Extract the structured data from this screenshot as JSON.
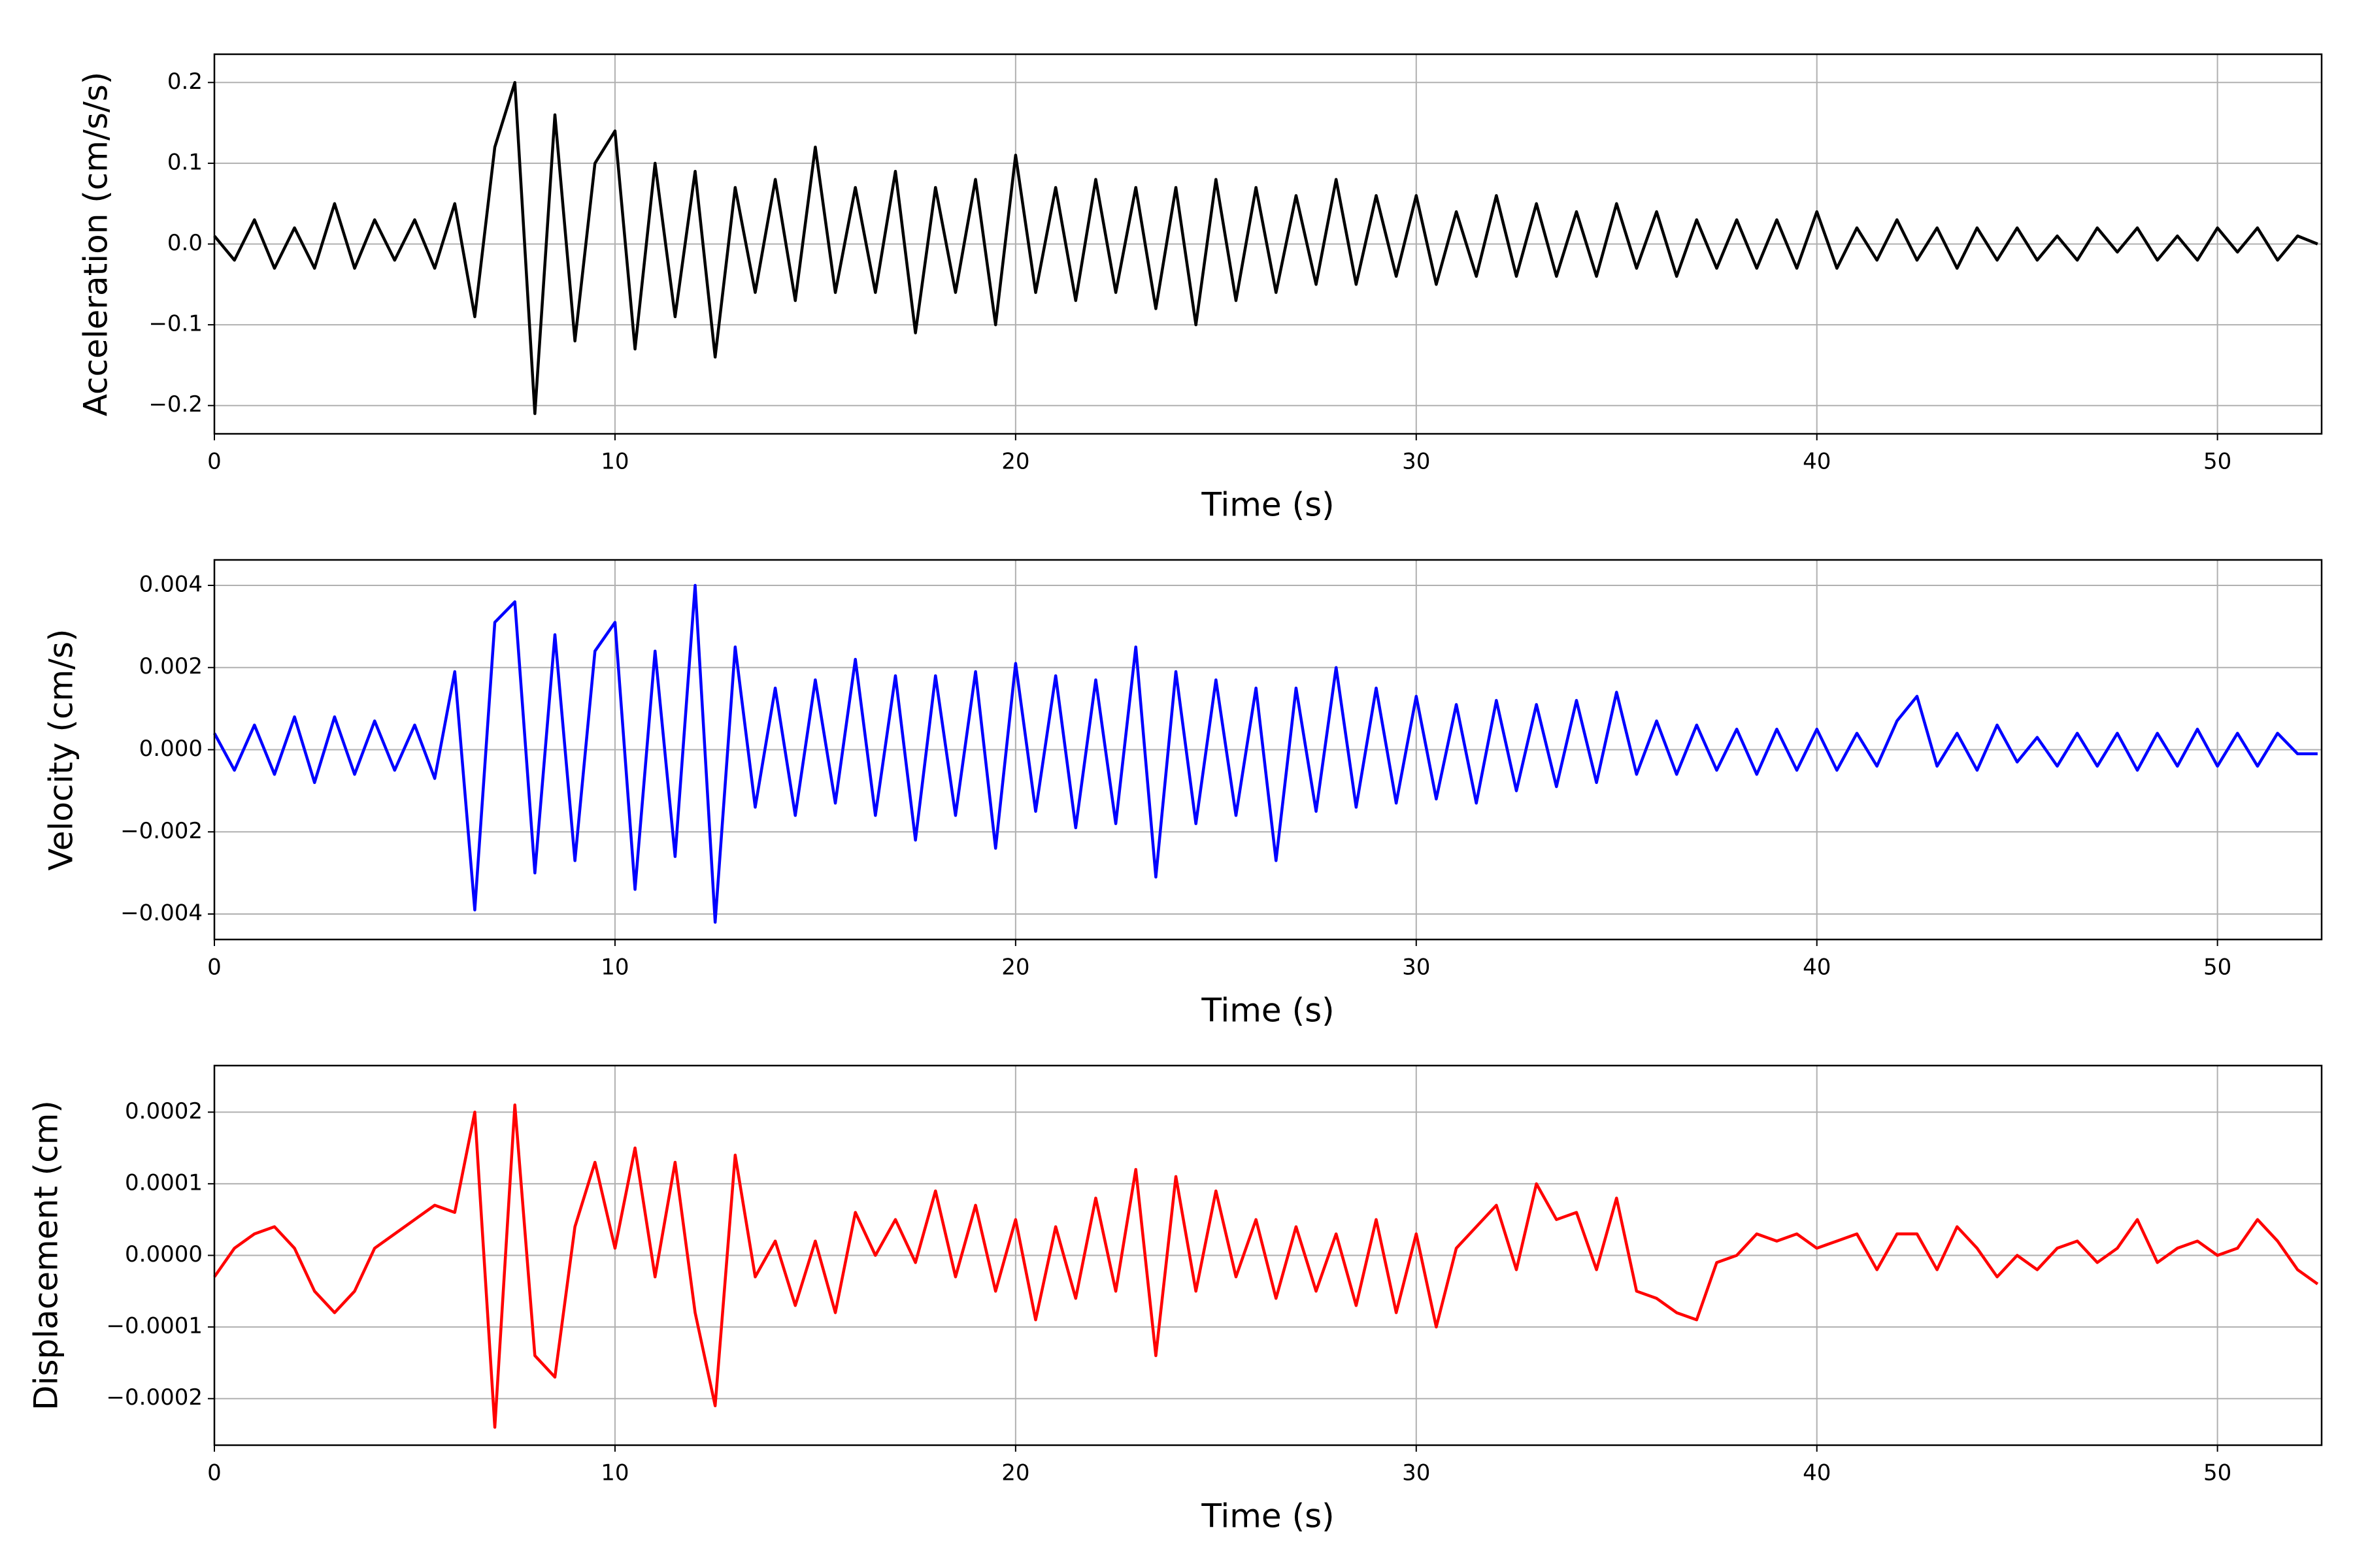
{
  "chart_data": [
    {
      "type": "line",
      "xlabel": "Time (s)",
      "ylabel": "Acceleration (cm/s/s)",
      "color": "#000000",
      "grid": true,
      "xlim": [
        0,
        52.6
      ],
      "xticks": [
        0,
        10,
        20,
        30,
        40,
        50
      ],
      "ylim": [
        -0.235,
        0.235
      ],
      "yticks": [
        {
          "value": -0.2,
          "label": "−0.2"
        },
        {
          "value": -0.1,
          "label": "−0.1"
        },
        {
          "value": 0,
          "label": "0.0"
        },
        0.1,
        0.2
      ],
      "x": [
        0,
        0.5,
        1,
        1.5,
        2,
        2.5,
        3,
        3.5,
        4,
        4.5,
        5,
        5.5,
        6,
        6.5,
        7,
        7.5,
        8,
        8.5,
        9,
        9.5,
        10,
        10.5,
        11,
        11.5,
        12,
        12.5,
        13,
        13.5,
        14,
        14.5,
        15,
        15.5,
        16,
        16.5,
        17,
        17.5,
        18,
        18.5,
        19,
        19.5,
        20,
        20.5,
        21,
        21.5,
        22,
        22.5,
        23,
        23.5,
        24,
        24.5,
        25,
        25.5,
        26,
        26.5,
        27,
        27.5,
        28,
        28.5,
        29,
        29.5,
        30,
        30.5,
        31,
        31.5,
        32,
        32.5,
        33,
        33.5,
        34,
        34.5,
        35,
        35.5,
        36,
        36.5,
        37,
        37.5,
        38,
        38.5,
        39,
        39.5,
        40,
        40.5,
        41,
        41.5,
        42,
        42.5,
        43,
        43.5,
        44,
        44.5,
        45,
        45.5,
        46,
        46.5,
        47,
        47.5,
        48,
        48.5,
        49,
        49.5,
        50,
        50.5,
        51,
        51.5,
        52,
        52.5
      ],
      "values": [
        0.01,
        -0.02,
        0.03,
        -0.03,
        0.02,
        -0.03,
        0.05,
        -0.03,
        0.03,
        -0.02,
        0.03,
        -0.03,
        0.05,
        -0.09,
        0.12,
        0.2,
        -0.21,
        0.16,
        -0.12,
        0.1,
        0.14,
        -0.13,
        0.1,
        -0.09,
        0.09,
        -0.14,
        0.07,
        -0.06,
        0.08,
        -0.07,
        0.12,
        -0.06,
        0.07,
        -0.06,
        0.09,
        -0.11,
        0.07,
        -0.06,
        0.08,
        -0.1,
        0.11,
        -0.06,
        0.07,
        -0.07,
        0.08,
        -0.06,
        0.07,
        -0.08,
        0.07,
        -0.1,
        0.08,
        -0.07,
        0.07,
        -0.06,
        0.06,
        -0.05,
        0.08,
        -0.05,
        0.06,
        -0.04,
        0.06,
        -0.05,
        0.04,
        -0.04,
        0.06,
        -0.04,
        0.05,
        -0.04,
        0.04,
        -0.04,
        0.05,
        -0.03,
        0.04,
        -0.04,
        0.03,
        -0.03,
        0.03,
        -0.03,
        0.03,
        -0.03,
        0.04,
        -0.03,
        0.02,
        -0.02,
        0.03,
        -0.02,
        0.02,
        -0.03,
        0.02,
        -0.02,
        0.02,
        -0.02,
        0.01,
        -0.02,
        0.02,
        -0.01,
        0.02,
        -0.02,
        0.01,
        -0.02,
        0.02,
        -0.01,
        0.02,
        -0.02,
        0.01,
        0
      ]
    },
    {
      "type": "line",
      "xlabel": "Time (s)",
      "ylabel": "Velocity (cm/s)",
      "color": "#0000ff",
      "grid": true,
      "xlim": [
        0,
        52.6
      ],
      "xticks": [
        0,
        10,
        20,
        30,
        40,
        50
      ],
      "ylim": [
        -0.00462,
        0.00462
      ],
      "yticks": [
        {
          "value": -0.004,
          "label": "−0.004"
        },
        {
          "value": -0.002,
          "label": "−0.002"
        },
        {
          "value": 0,
          "label": "0.000"
        },
        0.002,
        0.004
      ],
      "x": [
        0,
        0.5,
        1,
        1.5,
        2,
        2.5,
        3,
        3.5,
        4,
        4.5,
        5,
        5.5,
        6,
        6.5,
        7,
        7.5,
        8,
        8.5,
        9,
        9.5,
        10,
        10.5,
        11,
        11.5,
        12,
        12.5,
        13,
        13.5,
        14,
        14.5,
        15,
        15.5,
        16,
        16.5,
        17,
        17.5,
        18,
        18.5,
        19,
        19.5,
        20,
        20.5,
        21,
        21.5,
        22,
        22.5,
        23,
        23.5,
        24,
        24.5,
        25,
        25.5,
        26,
        26.5,
        27,
        27.5,
        28,
        28.5,
        29,
        29.5,
        30,
        30.5,
        31,
        31.5,
        32,
        32.5,
        33,
        33.5,
        34,
        34.5,
        35,
        35.5,
        36,
        36.5,
        37,
        37.5,
        38,
        38.5,
        39,
        39.5,
        40,
        40.5,
        41,
        41.5,
        42,
        42.5,
        43,
        43.5,
        44,
        44.5,
        45,
        45.5,
        46,
        46.5,
        47,
        47.5,
        48,
        48.5,
        49,
        49.5,
        50,
        50.5,
        51,
        51.5,
        52,
        52.5
      ],
      "values": [
        0.0004,
        -0.0005,
        0.0006,
        -0.0006,
        0.0008,
        -0.0008,
        0.0008,
        -0.0006,
        0.0007,
        -0.0005,
        0.0006,
        -0.0007,
        0.0019,
        -0.0039,
        0.0031,
        0.0036,
        -0.003,
        0.0028,
        -0.0027,
        0.0024,
        0.0031,
        -0.0034,
        0.0024,
        -0.0026,
        0.004,
        -0.0042,
        0.0025,
        -0.0014,
        0.0015,
        -0.0016,
        0.0017,
        -0.0013,
        0.0022,
        -0.0016,
        0.0018,
        -0.0022,
        0.0018,
        -0.0016,
        0.0019,
        -0.0024,
        0.0021,
        -0.0015,
        0.0018,
        -0.0019,
        0.0017,
        -0.0018,
        0.0025,
        -0.0031,
        0.0019,
        -0.0018,
        0.0017,
        -0.0016,
        0.0015,
        -0.0027,
        0.0015,
        -0.0015,
        0.002,
        -0.0014,
        0.0015,
        -0.0013,
        0.0013,
        -0.0012,
        0.0011,
        -0.0013,
        0.0012,
        -0.001,
        0.0011,
        -0.0009,
        0.0012,
        -0.0008,
        0.0014,
        -0.0006,
        0.0007,
        -0.0006,
        0.0006,
        -0.0005,
        0.0005,
        -0.0006,
        0.0005,
        -0.0005,
        0.0005,
        -0.0005,
        0.0004,
        -0.0004,
        0.0007,
        0.0013,
        -0.0004,
        0.0004,
        -0.0005,
        0.0006,
        -0.0003,
        0.0003,
        -0.0004,
        0.0004,
        -0.0004,
        0.0004,
        -0.0005,
        0.0004,
        -0.0004,
        0.0005,
        -0.0004,
        0.0004,
        -0.0004,
        0.0004,
        -0.0001,
        -0.0001
      ]
    },
    {
      "type": "line",
      "xlabel": "Time (s)",
      "ylabel": "Displacement (cm)",
      "color": "#ff0000",
      "grid": true,
      "xlim": [
        0,
        52.6
      ],
      "xticks": [
        0,
        10,
        20,
        30,
        40,
        50
      ],
      "ylim": [
        -0.000265,
        0.000265
      ],
      "yticks": [
        {
          "value": -0.0002,
          "label": "−0.0002"
        },
        {
          "value": -0.0001,
          "label": "−0.0001"
        },
        {
          "value": 0,
          "label": "0.0000"
        },
        0.0001,
        0.0002
      ],
      "x": [
        0,
        0.5,
        1,
        1.5,
        2,
        2.5,
        3,
        3.5,
        4,
        4.5,
        5,
        5.5,
        6,
        6.5,
        7,
        7.5,
        8,
        8.5,
        9,
        9.5,
        10,
        10.5,
        11,
        11.5,
        12,
        12.5,
        13,
        13.5,
        14,
        14.5,
        15,
        15.5,
        16,
        16.5,
        17,
        17.5,
        18,
        18.5,
        19,
        19.5,
        20,
        20.5,
        21,
        21.5,
        22,
        22.5,
        23,
        23.5,
        24,
        24.5,
        25,
        25.5,
        26,
        26.5,
        27,
        27.5,
        28,
        28.5,
        29,
        29.5,
        30,
        30.5,
        31,
        31.5,
        32,
        32.5,
        33,
        33.5,
        34,
        34.5,
        35,
        35.5,
        36,
        36.5,
        37,
        37.5,
        38,
        38.5,
        39,
        39.5,
        40,
        40.5,
        41,
        41.5,
        42,
        42.5,
        43,
        43.5,
        44,
        44.5,
        45,
        45.5,
        46,
        46.5,
        47,
        47.5,
        48,
        48.5,
        49,
        49.5,
        50,
        50.5,
        51,
        51.5,
        52,
        52.5
      ],
      "values": [
        -3e-05,
        1e-05,
        3e-05,
        4e-05,
        1e-05,
        -5e-05,
        -8e-05,
        -5e-05,
        1e-05,
        3e-05,
        5e-05,
        7e-05,
        6e-05,
        0.0002,
        -0.00024,
        0.00021,
        -0.00014,
        -0.00017,
        4e-05,
        0.00013,
        1e-05,
        0.00015,
        -3e-05,
        0.00013,
        -8e-05,
        -0.00021,
        0.00014,
        -3e-05,
        2e-05,
        -7e-05,
        2e-05,
        -8e-05,
        6e-05,
        0,
        5e-05,
        -1e-05,
        9e-05,
        -3e-05,
        7e-05,
        -5e-05,
        5e-05,
        -9e-05,
        4e-05,
        -6e-05,
        8e-05,
        -5e-05,
        0.00012,
        -0.00014,
        0.00011,
        -5e-05,
        9e-05,
        -3e-05,
        5e-05,
        -6e-05,
        4e-05,
        -5e-05,
        3e-05,
        -7e-05,
        5e-05,
        -8e-05,
        3e-05,
        -0.0001,
        1e-05,
        4e-05,
        7e-05,
        -2e-05,
        0.0001,
        5e-05,
        6e-05,
        -2e-05,
        8e-05,
        -5e-05,
        -6e-05,
        -8e-05,
        -9e-05,
        -1e-05,
        0,
        3e-05,
        2e-05,
        3e-05,
        1e-05,
        2e-05,
        3e-05,
        -2e-05,
        3e-05,
        3e-05,
        -2e-05,
        4e-05,
        1e-05,
        -3e-05,
        0,
        -2e-05,
        1e-05,
        2e-05,
        -1e-05,
        1e-05,
        5e-05,
        -1e-05,
        1e-05,
        2e-05,
        0,
        1e-05,
        5e-05,
        2e-05,
        -2e-05,
        -4e-05
      ]
    }
  ]
}
